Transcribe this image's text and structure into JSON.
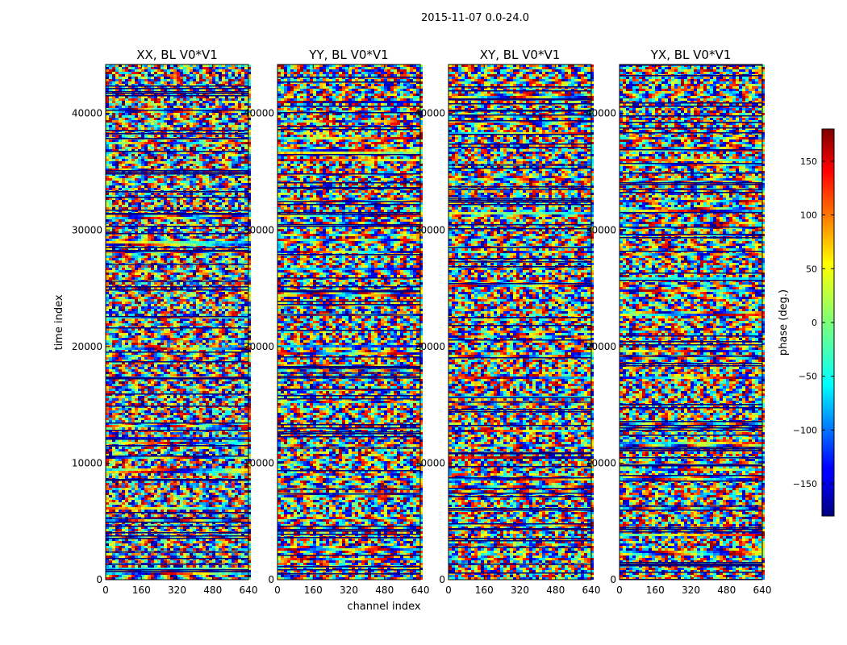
{
  "figure": {
    "suptitle": "2015-11-07 0.0-24.0",
    "xlabel": "channel index",
    "ylabel": "time index"
  },
  "chart_data": {
    "type": "heatmap",
    "panels": [
      {
        "title": "XX, BL V0*V1"
      },
      {
        "title": "YY, BL V0*V1"
      },
      {
        "title": "XY, BL V0*V1"
      },
      {
        "title": "YX, BL V0*V1"
      }
    ],
    "xlim": [
      0,
      640
    ],
    "ylim": [
      0,
      44200
    ],
    "xticks": [
      0,
      160,
      320,
      480,
      640
    ],
    "yticks": [
      0,
      10000,
      20000,
      30000,
      40000
    ],
    "colorbar": {
      "label": "phase (deg.)",
      "range": [
        -180,
        180
      ],
      "ticks": [
        -150,
        -100,
        -50,
        0,
        50,
        100,
        150
      ],
      "colormap": "jet"
    },
    "colors": {
      "dark_blue": "#00007f",
      "blue": "#0000ff",
      "cyan": "#00ffff",
      "green": "#7dff7a",
      "yellow": "#ffff00",
      "orange": "#ff7f00",
      "red": "#ff0000",
      "dark_red": "#7f0000"
    }
  }
}
